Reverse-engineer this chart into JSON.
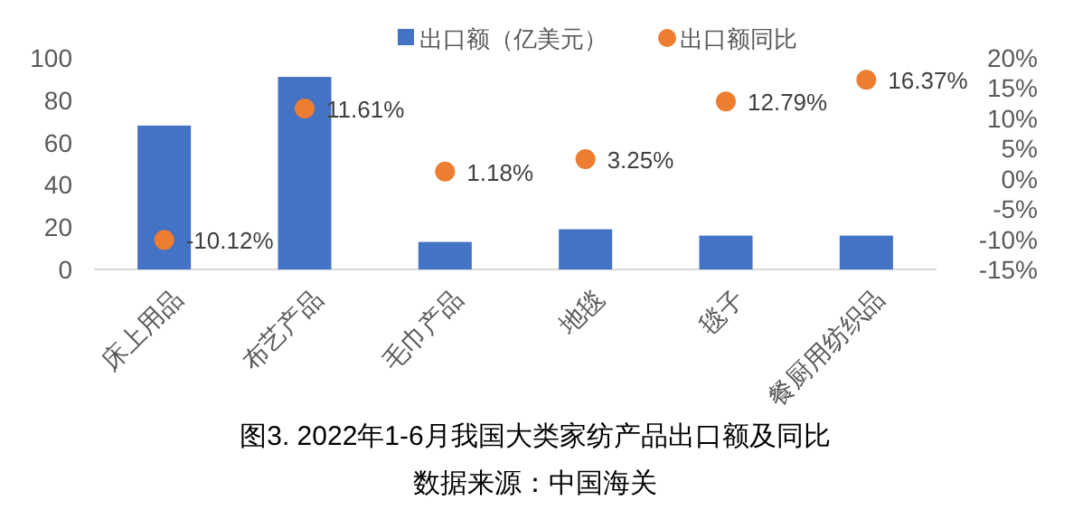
{
  "chart_data": {
    "type": "bar",
    "title": "图3. 2022年1-6月我国大类家纺产品出口额及同比",
    "annotations": [
      "数据来源：中国海关"
    ],
    "categories": [
      "床上用品",
      "布艺产品",
      "毛巾产品",
      "地毯",
      "毯子",
      "餐厨用纺织品"
    ],
    "series": [
      {
        "name": "出口额（亿美元）",
        "color": "#4472c4",
        "values": [
          68,
          91,
          13,
          19,
          16,
          16
        ]
      },
      {
        "type": "scatter",
        "axis": "y2",
        "marker": "circle",
        "name": "出口额同比",
        "color": "#ed7d31",
        "values": [
          -10.12,
          11.61,
          1.18,
          3.25,
          12.79,
          16.37
        ],
        "value_labels": [
          "-10.12%",
          "11.61%",
          "1.18%",
          "3.25%",
          "12.79%",
          "16.37%"
        ]
      }
    ],
    "ylim": [
      0,
      100
    ],
    "yticks": [
      0,
      20,
      40,
      60,
      80,
      100
    ],
    "y2lim": [
      -15,
      20
    ],
    "y2ticks": [
      {
        "value": 20,
        "label": "20%"
      },
      {
        "value": 15,
        "label": "15%"
      },
      {
        "value": 10,
        "label": "10%"
      },
      {
        "value": 5,
        "label": "5%"
      },
      {
        "value": 0,
        "label": "0%"
      },
      {
        "value": -5,
        "label": "-5%"
      },
      {
        "value": -10,
        "label": "-10%"
      },
      {
        "value": -15,
        "label": "-15%"
      }
    ],
    "grid": false,
    "legend": "top"
  }
}
